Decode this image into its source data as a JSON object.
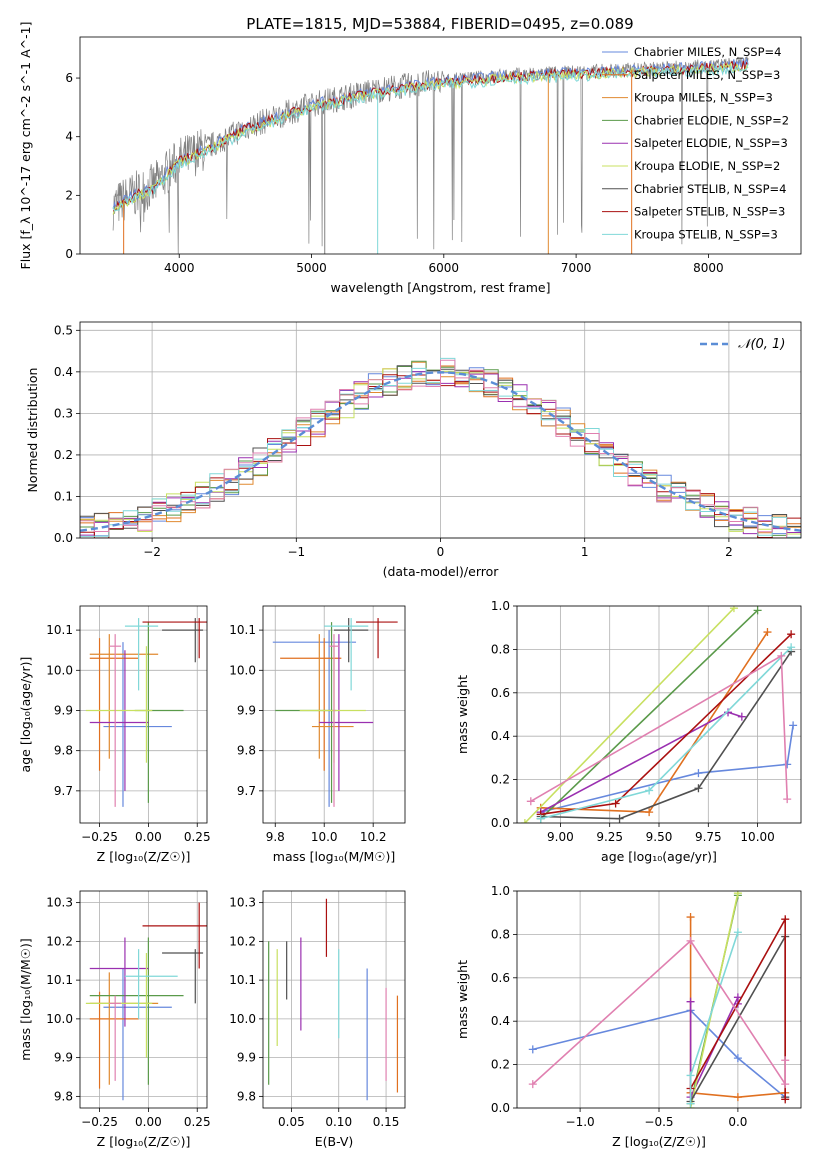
{
  "figure_title": "PLATE=1815, MJD=53884, FIBERID=0495, z=0.089",
  "colors": {
    "chabrier_miles": "#6688dd",
    "salpeter_miles": "#e07020",
    "kroupa_miles": "#e08a30",
    "chabrier_elodie": "#5a9a4a",
    "salpeter_elodie": "#9a30b0",
    "kroupa_elodie": "#c8e060",
    "chabrier_stelib": "#505050",
    "salpeter_stelib": "#aa1010",
    "kroupa_stelib": "#80d8d8",
    "data_spectrum": "#808080",
    "pink": "#e080b0",
    "normal_curve": "#5b8dd6"
  },
  "chart_data": [
    {
      "id": "spectrum",
      "type": "line",
      "xlabel": "wavelength [Angstrom, rest frame]",
      "ylabel": "Flux [f_λ 10^-17 erg cm^-2 s^-1 A^-1]",
      "xlim": [
        3250,
        8700
      ],
      "ylim": [
        0,
        7.4
      ],
      "xticks": [
        "4000",
        "5000",
        "6000",
        "7000",
        "8000"
      ],
      "yticks": [
        "0",
        "2",
        "4",
        "6"
      ],
      "legend_placement": "right",
      "legend": [
        {
          "name": "Chabrier MILES, N_SSP=4",
          "color_key": "chabrier_miles"
        },
        {
          "name": "Salpeter MILES, N_SSP=3",
          "color_key": "salpeter_miles"
        },
        {
          "name": "Kroupa MILES, N_SSP=3",
          "color_key": "kroupa_miles"
        },
        {
          "name": "Chabrier ELODIE, N_SSP=2",
          "color_key": "chabrier_elodie"
        },
        {
          "name": "Salpeter ELODIE, N_SSP=3",
          "color_key": "salpeter_elodie"
        },
        {
          "name": "Kroupa ELODIE, N_SSP=2",
          "color_key": "kroupa_elodie"
        },
        {
          "name": "Chabrier STELIB, N_SSP=4",
          "color_key": "chabrier_stelib"
        },
        {
          "name": "Salpeter STELIB, N_SSP=3",
          "color_key": "salpeter_stelib"
        },
        {
          "name": "Kroupa STELIB, N_SSP=3",
          "color_key": "kroupa_stelib"
        }
      ],
      "continuum": {
        "x": [
          3500,
          3600,
          3800,
          4000,
          4200,
          4500,
          5000,
          5500,
          6000,
          6500,
          7000,
          7500,
          8000,
          8300
        ],
        "y": [
          1.6,
          1.9,
          2.3,
          3.2,
          3.6,
          4.3,
          5.1,
          5.6,
          5.9,
          6.1,
          6.2,
          6.3,
          6.4,
          6.5
        ]
      }
    },
    {
      "id": "residuals",
      "type": "bar",
      "xlabel": "(data-model)/error",
      "ylabel": "Normed distribution",
      "xlim": [
        -2.5,
        2.5
      ],
      "ylim": [
        0,
        0.52
      ],
      "xticks": [
        "−2",
        "−1",
        "0",
        "1",
        "2"
      ],
      "yticks": [
        "0.0",
        "0.1",
        "0.2",
        "0.3",
        "0.4",
        "0.5"
      ],
      "grid": true,
      "legend_placement": "top-right",
      "legend_label": "𝒩(0, 1)",
      "bin_width": 0.1
    },
    {
      "id": "age_vs_Z",
      "type": "scatter",
      "xlabel": "Z [log₁₀(Z/Z☉)]",
      "ylabel": "age  [log₁₀(age/yr)]",
      "xlim": [
        -0.35,
        0.3
      ],
      "ylim": [
        9.62,
        10.16
      ],
      "xticks": [
        "−0.25",
        "0.00",
        "0.25"
      ],
      "yticks": [
        "9.7",
        "9.8",
        "9.9",
        "10.0",
        "10.1"
      ],
      "grid": true,
      "points": [
        {
          "c": "chabrier_miles",
          "x": -0.13,
          "y": 9.86,
          "xe": [
            -0.23,
            0.12
          ],
          "ye": [
            9.66,
            10.07
          ]
        },
        {
          "c": "salpeter_miles",
          "x": -0.25,
          "y": 10.03,
          "xe": [
            -0.3,
            -0.05
          ],
          "ye": [
            9.75,
            10.08
          ]
        },
        {
          "c": "kroupa_miles",
          "x": -0.2,
          "y": 10.04,
          "xe": [
            -0.3,
            0.05
          ],
          "ye": [
            9.78,
            10.09
          ]
        },
        {
          "c": "chabrier_elodie",
          "x": 0.0,
          "y": 9.9,
          "xe": [
            -0.07,
            0.18
          ],
          "ye": [
            9.67,
            10.12
          ]
        },
        {
          "c": "salpeter_elodie",
          "x": -0.12,
          "y": 9.87,
          "xe": [
            -0.3,
            0.0
          ],
          "ye": [
            9.7,
            10.05
          ]
        },
        {
          "c": "kroupa_elodie",
          "x": -0.01,
          "y": 9.9,
          "xe": [
            -0.32,
            0.02
          ],
          "ye": [
            9.77,
            10.06
          ]
        },
        {
          "c": "chabrier_stelib",
          "x": 0.24,
          "y": 10.1,
          "xe": [
            0.07,
            0.28
          ],
          "ye": [
            10.02,
            10.13
          ]
        },
        {
          "c": "salpeter_stelib",
          "x": 0.26,
          "y": 10.12,
          "xe": [
            -0.03,
            0.3
          ],
          "ye": [
            10.03,
            10.13
          ]
        },
        {
          "c": "kroupa_stelib",
          "x": -0.05,
          "y": 10.11,
          "xe": [
            -0.12,
            0.05
          ],
          "ye": [
            9.95,
            10.13
          ]
        },
        {
          "c": "pink",
          "x": -0.17,
          "y": 10.06,
          "xe": [
            -0.2,
            -0.14
          ],
          "ye": [
            9.66,
            10.09
          ]
        }
      ]
    },
    {
      "id": "age_vs_mass",
      "type": "scatter",
      "xlabel": "mass [log₁₀(M/M☉)]",
      "ylabel": "",
      "xlim": [
        9.75,
        10.33
      ],
      "ylim": [
        9.62,
        10.16
      ],
      "xticks": [
        "9.8",
        "10.0",
        "10.2"
      ],
      "yticks": [
        "9.7",
        "9.8",
        "9.9",
        "10.0",
        "10.1"
      ],
      "grid": true,
      "points": [
        {
          "c": "chabrier_miles",
          "x": 10.02,
          "y": 10.07,
          "xe": [
            9.79,
            10.13
          ],
          "ye": [
            9.66,
            10.1
          ]
        },
        {
          "c": "salpeter_miles",
          "x": 10.0,
          "y": 10.03,
          "xe": [
            9.82,
            10.07
          ],
          "ye": [
            9.75,
            10.08
          ]
        },
        {
          "c": "kroupa_miles",
          "x": 9.98,
          "y": 9.86,
          "xe": [
            9.95,
            10.12
          ],
          "ye": [
            9.78,
            10.09
          ]
        },
        {
          "c": "chabrier_elodie",
          "x": 10.03,
          "y": 9.9,
          "xe": [
            9.8,
            10.05
          ],
          "ye": [
            9.67,
            10.12
          ]
        },
        {
          "c": "salpeter_elodie",
          "x": 10.06,
          "y": 9.87,
          "xe": [
            9.98,
            10.2
          ],
          "ye": [
            9.7,
            10.09
          ]
        },
        {
          "c": "kroupa_elodie",
          "x": 10.04,
          "y": 9.9,
          "xe": [
            9.9,
            10.17
          ],
          "ye": [
            9.77,
            10.06
          ]
        },
        {
          "c": "chabrier_stelib",
          "x": 10.1,
          "y": 10.1,
          "xe": [
            10.04,
            10.18
          ],
          "ye": [
            10.02,
            10.13
          ]
        },
        {
          "c": "salpeter_stelib",
          "x": 10.22,
          "y": 10.12,
          "xe": [
            10.13,
            10.3
          ],
          "ye": [
            10.03,
            10.13
          ]
        },
        {
          "c": "kroupa_stelib",
          "x": 10.11,
          "y": 10.11,
          "xe": [
            10.0,
            10.18
          ],
          "ye": [
            9.95,
            10.13
          ]
        },
        {
          "c": "pink",
          "x": 10.04,
          "y": 10.06,
          "xe": [
            10.02,
            10.06
          ],
          "ye": [
            9.66,
            10.09
          ]
        }
      ]
    },
    {
      "id": "weight_vs_age",
      "type": "line",
      "xlabel": "age  [log₁₀(age/yr)]",
      "ylabel": "mass weight",
      "xlim": [
        8.78,
        10.22
      ],
      "ylim": [
        0,
        1
      ],
      "xticks": [
        "9.00",
        "9.25",
        "9.50",
        "9.75",
        "10.00"
      ],
      "yticks": [
        "0.0",
        "0.2",
        "0.4",
        "0.6",
        "0.8",
        "1.0"
      ],
      "grid": true,
      "series": [
        {
          "c": "chabrier_miles",
          "x": [
            8.9,
            9.7,
            10.15,
            10.18
          ],
          "y": [
            0.05,
            0.23,
            0.27,
            0.45
          ]
        },
        {
          "c": "salpeter_miles",
          "x": [
            8.9,
            9.45,
            10.05
          ],
          "y": [
            0.07,
            0.05,
            0.88
          ]
        },
        {
          "c": "chabrier_elodie",
          "x": [
            8.9,
            10.0
          ],
          "y": [
            0.02,
            0.98
          ]
        },
        {
          "c": "salpeter_elodie",
          "x": [
            8.9,
            9.85,
            9.92
          ],
          "y": [
            0.05,
            0.51,
            0.49
          ]
        },
        {
          "c": "kroupa_elodie",
          "x": [
            8.82,
            9.88
          ],
          "y": [
            0.0,
            0.99
          ]
        },
        {
          "c": "chabrier_stelib",
          "x": [
            8.9,
            9.3,
            9.7,
            10.17
          ],
          "y": [
            0.03,
            0.02,
            0.16,
            0.79
          ]
        },
        {
          "c": "salpeter_stelib",
          "x": [
            8.9,
            9.28,
            10.17
          ],
          "y": [
            0.04,
            0.09,
            0.87
          ]
        },
        {
          "c": "kroupa_stelib",
          "x": [
            8.9,
            9.45,
            10.17
          ],
          "y": [
            0.02,
            0.15,
            0.81
          ]
        },
        {
          "c": "pink",
          "x": [
            8.85,
            10.12,
            10.15
          ],
          "y": [
            0.1,
            0.77,
            0.11
          ]
        }
      ]
    },
    {
      "id": "mass_vs_Z",
      "type": "scatter",
      "xlabel": "Z [log₁₀(Z/Z☉)]",
      "ylabel": "mass [log₁₀(M/M☉)]",
      "xlim": [
        -0.35,
        0.3
      ],
      "ylim": [
        9.77,
        10.33
      ],
      "xticks": [
        "−0.25",
        "0.00",
        "0.25"
      ],
      "yticks": [
        "9.8",
        "9.9",
        "10.0",
        "10.1",
        "10.2",
        "10.3"
      ],
      "grid": true,
      "points": [
        {
          "c": "chabrier_miles",
          "x": -0.13,
          "y": 10.03,
          "xe": [
            -0.23,
            0.12
          ],
          "ye": [
            9.79,
            10.13
          ]
        },
        {
          "c": "salpeter_miles",
          "x": -0.25,
          "y": 10.0,
          "xe": [
            -0.3,
            -0.05
          ],
          "ye": [
            9.82,
            10.07
          ]
        },
        {
          "c": "kroupa_miles",
          "x": -0.2,
          "y": 10.04,
          "xe": [
            -0.3,
            0.05
          ],
          "ye": [
            9.83,
            10.12
          ]
        },
        {
          "c": "chabrier_elodie",
          "x": 0.0,
          "y": 10.06,
          "xe": [
            -0.3,
            0.18
          ],
          "ye": [
            9.83,
            10.21
          ]
        },
        {
          "c": "salpeter_elodie",
          "x": -0.12,
          "y": 10.13,
          "xe": [
            -0.3,
            0.0
          ],
          "ye": [
            9.98,
            10.21
          ]
        },
        {
          "c": "kroupa_elodie",
          "x": -0.01,
          "y": 10.04,
          "xe": [
            -0.32,
            0.02
          ],
          "ye": [
            9.9,
            10.17
          ]
        },
        {
          "c": "chabrier_stelib",
          "x": 0.24,
          "y": 10.17,
          "xe": [
            0.07,
            0.28
          ],
          "ye": [
            10.04,
            10.18
          ]
        },
        {
          "c": "salpeter_stelib",
          "x": 0.26,
          "y": 10.24,
          "xe": [
            -0.03,
            0.3
          ],
          "ye": [
            10.13,
            10.3
          ]
        },
        {
          "c": "kroupa_stelib",
          "x": -0.05,
          "y": 10.11,
          "xe": [
            -0.12,
            0.15
          ],
          "ye": [
            10.0,
            10.18
          ]
        },
        {
          "c": "pink",
          "x": -0.17,
          "y": 10.04,
          "xe": [
            -0.2,
            -0.14
          ],
          "ye": [
            9.84,
            10.06
          ]
        }
      ]
    },
    {
      "id": "mass_vs_EBV",
      "type": "scatter",
      "xlabel": "E(B-V)",
      "ylabel": "",
      "xlim": [
        0.02,
        0.17
      ],
      "ylim": [
        9.77,
        10.33
      ],
      "xticks": [
        "0.05",
        "0.10",
        "0.15"
      ],
      "yticks": [
        "9.8",
        "9.9",
        "10.0",
        "10.1",
        "10.2",
        "10.3"
      ],
      "grid": true,
      "points": [
        {
          "c": "chabrier_elodie",
          "x": 0.026,
          "y": 10.0,
          "xe": [
            0.026,
            0.026
          ],
          "ye": [
            9.83,
            10.2
          ]
        },
        {
          "c": "kroupa_elodie",
          "x": 0.035,
          "y": 10.05,
          "xe": [
            0.035,
            0.035
          ],
          "ye": [
            9.93,
            10.18
          ]
        },
        {
          "c": "chabrier_stelib",
          "x": 0.045,
          "y": 10.11,
          "xe": [
            0.045,
            0.045
          ],
          "ye": [
            10.05,
            10.2
          ]
        },
        {
          "c": "salpeter_elodie",
          "x": 0.06,
          "y": 10.09,
          "xe": [
            0.06,
            0.06
          ],
          "ye": [
            9.97,
            10.21
          ]
        },
        {
          "c": "salpeter_stelib",
          "x": 0.087,
          "y": 10.24,
          "xe": [
            0.087,
            0.087
          ],
          "ye": [
            10.16,
            10.31
          ]
        },
        {
          "c": "kroupa_stelib",
          "x": 0.1,
          "y": 10.06,
          "xe": [
            0.1,
            0.1
          ],
          "ye": [
            9.95,
            10.18
          ]
        },
        {
          "c": "chabrier_miles",
          "x": 0.13,
          "y": 9.96,
          "xe": [
            0.13,
            0.13
          ],
          "ye": [
            9.79,
            10.13
          ]
        },
        {
          "c": "pink",
          "x": 0.15,
          "y": 9.96,
          "xe": [
            0.15,
            0.15
          ],
          "ye": [
            9.84,
            10.08
          ]
        },
        {
          "c": "salpeter_miles",
          "x": 0.162,
          "y": 9.94,
          "xe": [
            0.162,
            0.162
          ],
          "ye": [
            9.81,
            10.06
          ]
        }
      ]
    },
    {
      "id": "weight_vs_Z",
      "type": "line",
      "xlabel": "Z [log₁₀(Z/Z☉)]",
      "ylabel": "mass weight",
      "xlim": [
        -1.4,
        0.4
      ],
      "ylim": [
        0,
        1
      ],
      "xticks": [
        "−1.0",
        "−0.5",
        "0.0"
      ],
      "yticks": [
        "0.0",
        "0.2",
        "0.4",
        "0.6",
        "0.8",
        "1.0"
      ],
      "grid": true,
      "series": [
        {
          "c": "chabrier_miles",
          "x": [
            -1.3,
            -0.3,
            0.0,
            0.3
          ],
          "y": [
            0.27,
            0.45,
            0.23,
            0.05
          ]
        },
        {
          "c": "salpeter_miles",
          "x": [
            -0.3,
            -0.3,
            0.0,
            0.3
          ],
          "y": [
            0.88,
            0.07,
            0.05,
            0.07
          ]
        },
        {
          "c": "chabrier_elodie",
          "x": [
            -0.3,
            0.0
          ],
          "y": [
            0.02,
            0.98
          ]
        },
        {
          "c": "salpeter_elodie",
          "x": [
            -0.3,
            -0.3,
            0.0,
            0.0
          ],
          "y": [
            0.49,
            0.05,
            0.51,
            0.48
          ]
        },
        {
          "c": "kroupa_elodie",
          "x": [
            -0.3,
            0.0
          ],
          "y": [
            0.0,
            0.99
          ]
        },
        {
          "c": "chabrier_stelib",
          "x": [
            -0.3,
            0.3,
            0.3
          ],
          "y": [
            0.03,
            0.79,
            0.05
          ]
        },
        {
          "c": "salpeter_stelib",
          "x": [
            -0.3,
            0.3,
            0.3
          ],
          "y": [
            0.09,
            0.87,
            0.04
          ]
        },
        {
          "c": "kroupa_stelib",
          "x": [
            -0.3,
            -0.3,
            0.0
          ],
          "y": [
            0.02,
            0.15,
            0.81
          ]
        },
        {
          "c": "pink",
          "x": [
            -1.3,
            -0.3,
            0.3,
            0.3
          ],
          "y": [
            0.11,
            0.77,
            0.11,
            0.22
          ]
        }
      ]
    }
  ]
}
